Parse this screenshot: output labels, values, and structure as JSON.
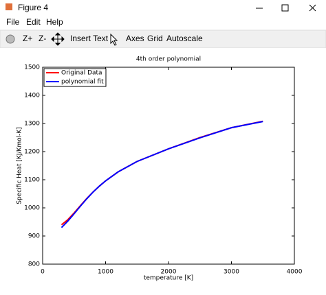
{
  "window": {
    "title": "Figure 4"
  },
  "menu": [
    "File",
    "Edit",
    "Help"
  ],
  "toolbar": [
    "Z+",
    "Z-",
    "Insert Text",
    "Axes",
    "Grid",
    "Autoscale"
  ],
  "chart_data": {
    "type": "line",
    "title": "4th order polynomial",
    "x_label": "temperature [K]",
    "y_label": "Specific Heat [KJ/Kmol-K]",
    "x": [
      300,
      400,
      500,
      600,
      700,
      800,
      900,
      1000,
      1200,
      1500,
      2000,
      2500,
      3000,
      3500
    ],
    "series": [
      {
        "name": "Original Data",
        "color": "#ff0000",
        "values": [
          940,
          958,
          982,
          1008,
          1033,
          1056,
          1077,
          1096,
          1128,
          1165,
          1210,
          1250,
          1285,
          1308
        ]
      },
      {
        "name": "polynomial fit",
        "color": "#0000ff",
        "values": [
          930,
          953,
          979,
          1006,
          1032,
          1056,
          1077,
          1096,
          1128,
          1165,
          1210,
          1249,
          1285,
          1307
        ]
      }
    ],
    "xlim": [
      0,
      4000
    ],
    "xticks": [
      0,
      1000,
      2000,
      3000,
      4000
    ],
    "ylim": [
      800,
      1500
    ],
    "yticks": [
      800,
      900,
      1000,
      1100,
      1200,
      1300,
      1400,
      1500
    ],
    "legend": "upper left"
  }
}
